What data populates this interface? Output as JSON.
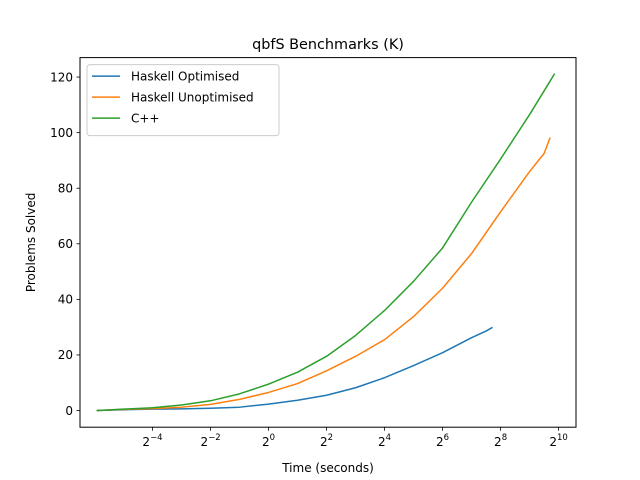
{
  "chart_data": {
    "type": "line",
    "title": "qbfS Benchmarks (K)",
    "xlabel": "Time (seconds)",
    "ylabel": "Problems Solved",
    "xscale": "log2",
    "xlim_log2": [
      -6.5,
      10.6
    ],
    "ylim": [
      -6,
      127
    ],
    "x_ticks": [
      {
        "base": "2",
        "exp": "−4",
        "log2": -4
      },
      {
        "base": "2",
        "exp": "−2",
        "log2": -2
      },
      {
        "base": "2",
        "exp": "0",
        "log2": 0
      },
      {
        "base": "2",
        "exp": "2",
        "log2": 2
      },
      {
        "base": "2",
        "exp": "4",
        "log2": 4
      },
      {
        "base": "2",
        "exp": "6",
        "log2": 6
      },
      {
        "base": "2",
        "exp": "8",
        "log2": 8
      },
      {
        "base": "2",
        "exp": "10",
        "log2": 10
      }
    ],
    "y_ticks": [
      0,
      20,
      40,
      60,
      80,
      100,
      120
    ],
    "grid": false,
    "legend_position": "top-left",
    "series": [
      {
        "name": "Haskell Optimised",
        "color": "#1f77b4",
        "points": [
          [
            -5.9,
            0
          ],
          [
            -5.0,
            0.3
          ],
          [
            -4.0,
            0.5
          ],
          [
            -3.0,
            0.6
          ],
          [
            -2.0,
            0.8
          ],
          [
            -1.0,
            1.2
          ],
          [
            0.0,
            2.3
          ],
          [
            1.0,
            3.7
          ],
          [
            2.0,
            5.5
          ],
          [
            3.0,
            8.2
          ],
          [
            4.0,
            11.8
          ],
          [
            5.0,
            16.2
          ],
          [
            6.0,
            20.8
          ],
          [
            6.5,
            23.5
          ],
          [
            7.0,
            26.2
          ],
          [
            7.5,
            28.6
          ],
          [
            7.7,
            29.8
          ]
        ]
      },
      {
        "name": "Haskell Unoptimised",
        "color": "#ff7f0e",
        "points": [
          [
            -5.9,
            0
          ],
          [
            -5.0,
            0.4
          ],
          [
            -4.0,
            0.7
          ],
          [
            -3.0,
            1.2
          ],
          [
            -2.0,
            2.2
          ],
          [
            -1.0,
            4.0
          ],
          [
            0.0,
            6.5
          ],
          [
            1.0,
            9.7
          ],
          [
            2.0,
            14.3
          ],
          [
            3.0,
            19.5
          ],
          [
            4.0,
            25.5
          ],
          [
            5.0,
            33.8
          ],
          [
            6.0,
            44.0
          ],
          [
            7.0,
            56.5
          ],
          [
            8.0,
            71.5
          ],
          [
            9.0,
            86.0
          ],
          [
            9.5,
            92.5
          ],
          [
            9.7,
            98.0
          ]
        ]
      },
      {
        "name": "C++",
        "color": "#2ca02c",
        "points": [
          [
            -5.9,
            0
          ],
          [
            -5.0,
            0.5
          ],
          [
            -4.0,
            1.0
          ],
          [
            -3.0,
            2.0
          ],
          [
            -2.0,
            3.5
          ],
          [
            -1.0,
            6.0
          ],
          [
            0.0,
            9.5
          ],
          [
            1.0,
            13.8
          ],
          [
            2.0,
            19.5
          ],
          [
            3.0,
            27.0
          ],
          [
            4.0,
            36.0
          ],
          [
            5.0,
            46.5
          ],
          [
            6.0,
            58.5
          ],
          [
            7.0,
            75.0
          ],
          [
            8.0,
            90.5
          ],
          [
            9.0,
            106.5
          ],
          [
            9.5,
            115.0
          ],
          [
            9.85,
            121.0
          ]
        ]
      }
    ]
  }
}
